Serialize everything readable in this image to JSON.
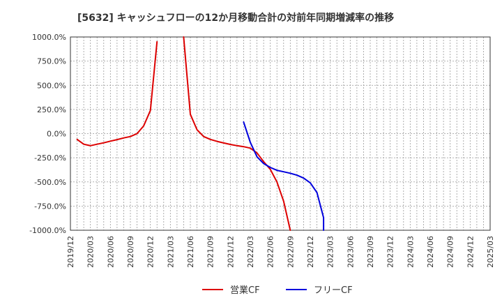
{
  "chart_data": {
    "type": "line",
    "title": "[5632]  キャッシュフローの12か月移動合計の対前年同期増減率の推移",
    "xlabel": "",
    "ylabel": "",
    "ylim": [
      -1000,
      1000
    ],
    "yticks": [
      1000,
      750,
      500,
      250,
      0,
      -250,
      -500,
      -750,
      -1000
    ],
    "ytick_labels": [
      "1000.0%",
      "750.0%",
      "500.0%",
      "250.0%",
      "0.0%",
      "-250.0%",
      "-500.0%",
      "-750.0%",
      "-1000.0%"
    ],
    "x_start": "2019/12",
    "x_end": "2025/03",
    "xtick_labels": [
      "2019/12",
      "2020/03",
      "2020/06",
      "2020/09",
      "2020/12",
      "2021/03",
      "2021/06",
      "2021/09",
      "2021/12",
      "2022/03",
      "2022/06",
      "2022/09",
      "2022/12",
      "2023/03",
      "2023/06",
      "2023/09",
      "2023/12",
      "2024/03",
      "2024/06",
      "2024/09",
      "2024/12",
      "2025/03"
    ],
    "grid": true,
    "legend_position": "bottom-center",
    "series": [
      {
        "name": "営業CF",
        "color": "#dd0000",
        "points": [
          [
            "2020/01",
            -60
          ],
          [
            "2020/02",
            -110
          ],
          [
            "2020/03",
            -125
          ],
          [
            "2020/04",
            -110
          ],
          [
            "2020/05",
            -95
          ],
          [
            "2020/06",
            -78
          ],
          [
            "2020/07",
            -62
          ],
          [
            "2020/08",
            -45
          ],
          [
            "2020/09",
            -30
          ],
          [
            "2020/10",
            0
          ],
          [
            "2020/11",
            80
          ],
          [
            "2020/12",
            240
          ],
          [
            "2021/01",
            950
          ],
          null,
          [
            "2021/05",
            1000
          ],
          [
            "2021/06",
            200
          ],
          [
            "2021/07",
            40
          ],
          [
            "2021/08",
            -30
          ],
          [
            "2021/09",
            -60
          ],
          [
            "2021/10",
            -80
          ],
          [
            "2021/11",
            -97
          ],
          [
            "2021/12",
            -112
          ],
          [
            "2022/01",
            -125
          ],
          [
            "2022/02",
            -135
          ],
          [
            "2022/03",
            -150
          ],
          [
            "2022/04",
            -200
          ],
          [
            "2022/05",
            -290
          ],
          [
            "2022/06",
            -370
          ],
          [
            "2022/07",
            -500
          ],
          [
            "2022/08",
            -700
          ],
          [
            "2022/09",
            -1000
          ]
        ]
      },
      {
        "name": "フリーCF",
        "color": "#0000dd",
        "points": [
          [
            "2022/02",
            120
          ],
          [
            "2022/03",
            -90
          ],
          [
            "2022/04",
            -240
          ],
          [
            "2022/05",
            -310
          ],
          [
            "2022/06",
            -350
          ],
          [
            "2022/07",
            -380
          ],
          [
            "2022/08",
            -395
          ],
          [
            "2022/09",
            -410
          ],
          [
            "2022/10",
            -430
          ],
          [
            "2022/11",
            -460
          ],
          [
            "2022/12",
            -510
          ],
          [
            "2023/01",
            -610
          ],
          [
            "2023/02",
            -870
          ],
          [
            "2023/02",
            -1000
          ]
        ]
      }
    ]
  }
}
